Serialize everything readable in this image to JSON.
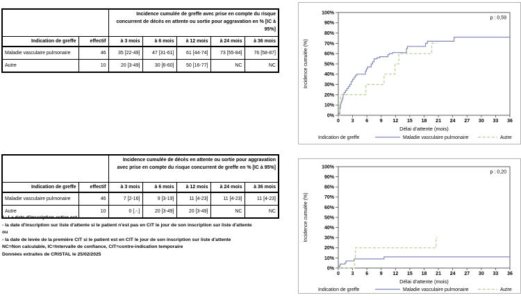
{
  "page": {
    "background": "#ffffff"
  },
  "colors": {
    "series_mvp": "#8088bd",
    "series_autre": "#b6cc93",
    "chart_border": "#b3b3b3",
    "axis": "#4d4d4d",
    "text": "#000000"
  },
  "tables": [
    {
      "header_title": "Incidence cumulée de greffe avec prise en compte du risque concurrent de décès en attente ou sortie pour aggravation en % [IC à 95%]",
      "columns": [
        "Indication de greffe",
        "effectif",
        "à 3 mois",
        "à 6 mois",
        "à 12 mois",
        "à 24 mois",
        "à 36 mois"
      ],
      "rows": [
        [
          "Maladie vasculaire pulmonaire",
          "46",
          "35 [22-49]",
          "47 [31-61]",
          "61 [44-74]",
          "73 [55-84]",
          "76 [58-87]"
        ],
        [
          "Autre",
          "10",
          "20 [3-49]",
          "30 [6-60]",
          "50 [16-77]",
          "NC",
          "NC"
        ]
      ]
    },
    {
      "header_title": "Incidence cumulée de décès en attente ou sortie pour aggravation avec prise en compte du risque concurrent de greffe en % [IC à 95%]",
      "columns": [
        "Indication de greffe",
        "effectif",
        "à 3 mois",
        "à 6 mois",
        "à 12 mois",
        "à 24 mois",
        "à 36 mois"
      ],
      "rows": [
        [
          "Maladie vasculaire pulmonaire",
          "46",
          "7 [2-16]",
          "9 [3-19]",
          "11 [4-23]",
          "11 [4-23]",
          "11 [4-23]"
        ],
        [
          "Autre",
          "10",
          "0 [.-.]",
          "20 [3-49]",
          "20 [3-49]",
          "NC",
          "NC"
        ]
      ]
    }
  ],
  "footnotes": [
    "* : La date d'inscription active est :",
    "- la date d'inscription sur liste d'attente si le patient n'est pas en CIT le jour de son inscription sur liste d'attente",
    "ou",
    "- la date de levée de la première CIT si le patient est en CIT le jour de son inscription sur liste d'attente",
    "NC=Non calculable, IC=Intervalle de confiance, CIT=contre-indication temporaire",
    "Données extraites de CRISTAL le 25/02/2025"
  ],
  "chart_data": [
    {
      "type": "line",
      "title": "",
      "p_label": "p : 0,59",
      "xlabel": "Délai d'attente (mois)",
      "ylabel": "Incidence cumulée (%)",
      "legend_title": "Indication de greffe",
      "legend_position": "bottom",
      "grid": false,
      "xlim": [
        0,
        36
      ],
      "ylim": [
        0,
        100
      ],
      "xticks": [
        0,
        3,
        6,
        9,
        12,
        15,
        18,
        21,
        24,
        27,
        30,
        33,
        36
      ],
      "yticks": [
        0,
        10,
        20,
        30,
        40,
        50,
        60,
        70,
        80,
        90,
        100
      ],
      "ytick_suffix": "%",
      "series": [
        {
          "name": "Maladie vasculaire pulmonaire",
          "color": "#8088bd",
          "dash": null,
          "step_points": [
            [
              0,
              0
            ],
            [
              0.15,
              2
            ],
            [
              0.3,
              7
            ],
            [
              0.45,
              11
            ],
            [
              0.6,
              13
            ],
            [
              0.75,
              15
            ],
            [
              0.9,
              17
            ],
            [
              1.0,
              20
            ],
            [
              1.2,
              22
            ],
            [
              1.5,
              24
            ],
            [
              1.8,
              26
            ],
            [
              2.1,
              28
            ],
            [
              2.4,
              30
            ],
            [
              2.7,
              33
            ],
            [
              3.0,
              35
            ],
            [
              3.3,
              37
            ],
            [
              3.6,
              39
            ],
            [
              3.9,
              40
            ],
            [
              5.7,
              43
            ],
            [
              5.9,
              45
            ],
            [
              6.1,
              47
            ],
            [
              6.9,
              50
            ],
            [
              7.2,
              52
            ],
            [
              7.5,
              55
            ],
            [
              8.1,
              56
            ],
            [
              8.7,
              57
            ],
            [
              10.4,
              59
            ],
            [
              10.7,
              60
            ],
            [
              11.4,
              61
            ],
            [
              14.3,
              65
            ],
            [
              14.5,
              67
            ],
            [
              18.3,
              70
            ],
            [
              18.7,
              72
            ],
            [
              24.3,
              76
            ],
            [
              36,
              76
            ]
          ]
        },
        {
          "name": "Autre",
          "color": "#b6cc93",
          "dash": "4,2.6",
          "step_points": [
            [
              0,
              0
            ],
            [
              0.3,
              10
            ],
            [
              0.5,
              20
            ],
            [
              5.8,
              30
            ],
            [
              9.6,
              40
            ],
            [
              11.9,
              50
            ],
            [
              12.7,
              60
            ],
            [
              19.6,
              70
            ],
            [
              20.6,
              70
            ]
          ]
        }
      ]
    },
    {
      "type": "line",
      "title": "",
      "p_label": "p : 0,20",
      "xlabel": "Délai d'attente (mois)",
      "ylabel": "Incidence cumulée (%)",
      "legend_title": "Indication de greffe",
      "legend_position": "bottom",
      "grid": false,
      "xlim": [
        0,
        36
      ],
      "ylim": [
        0,
        100
      ],
      "xticks": [
        0,
        3,
        6,
        9,
        12,
        15,
        18,
        21,
        24,
        27,
        30,
        33,
        36
      ],
      "yticks": [
        0,
        10,
        20,
        30,
        40,
        50,
        60,
        70,
        80,
        90,
        100
      ],
      "ytick_suffix": "%",
      "series": [
        {
          "name": "Maladie vasculaire pulmonaire",
          "color": "#8088bd",
          "dash": null,
          "step_points": [
            [
              0,
              0
            ],
            [
              0.2,
              2
            ],
            [
              0.4,
              4
            ],
            [
              1.4,
              5
            ],
            [
              1.6,
              7
            ],
            [
              3.3,
              9
            ],
            [
              9.6,
              11
            ],
            [
              36,
              11
            ]
          ]
        },
        {
          "name": "Autre",
          "color": "#b6cc93",
          "dash": "4,2.6",
          "step_points": [
            [
              0,
              0
            ],
            [
              3.4,
              10
            ],
            [
              3.6,
              20
            ],
            [
              20.5,
              30
            ],
            [
              20.8,
              30
            ]
          ]
        }
      ]
    }
  ]
}
